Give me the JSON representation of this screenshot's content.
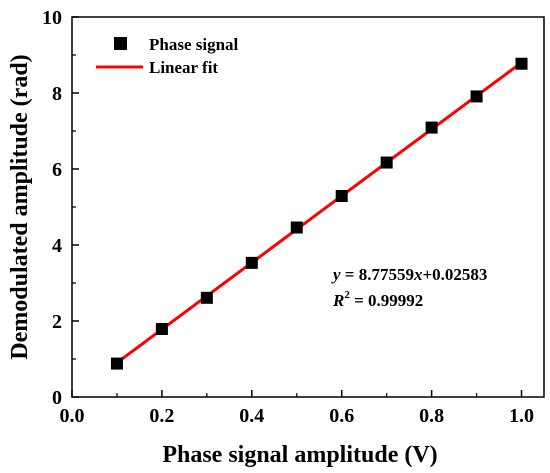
{
  "chart_data": {
    "type": "scatter",
    "title": "",
    "xlabel": "Phase signal amplitude (V)",
    "ylabel": "Demodulated amplitude (rad)",
    "xlim": [
      0.0,
      1.05
    ],
    "ylim": [
      0,
      10
    ],
    "x_ticks": [
      "0.0",
      "0.2",
      "0.4",
      "0.6",
      "0.8",
      "1.0"
    ],
    "y_ticks": [
      "0",
      "2",
      "4",
      "6",
      "8",
      "10"
    ],
    "grid": false,
    "legend_position": "top-left",
    "series": [
      {
        "name": "Phase signal",
        "kind": "scatter",
        "marker": "square",
        "color": "#000000",
        "x": [
          0.1,
          0.2,
          0.3,
          0.4,
          0.5,
          0.6,
          0.7,
          0.8,
          0.9,
          1.0
        ],
        "y": [
          0.88,
          1.79,
          2.61,
          3.53,
          4.46,
          5.29,
          6.17,
          7.09,
          7.91,
          8.77
        ]
      },
      {
        "name": "Linear fit",
        "kind": "line",
        "color": "#ff0000",
        "slope": 8.77559,
        "intercept": 0.02583,
        "x_range": [
          0.1,
          1.0
        ]
      }
    ],
    "annotation": {
      "equation_y": "y",
      "equation_eq": " = 8.77559",
      "equation_x": "x",
      "equation_rest": "+0.02583",
      "r2_R": "R",
      "r2_sup": "2",
      "r2_rest": " = 0.99992"
    }
  }
}
